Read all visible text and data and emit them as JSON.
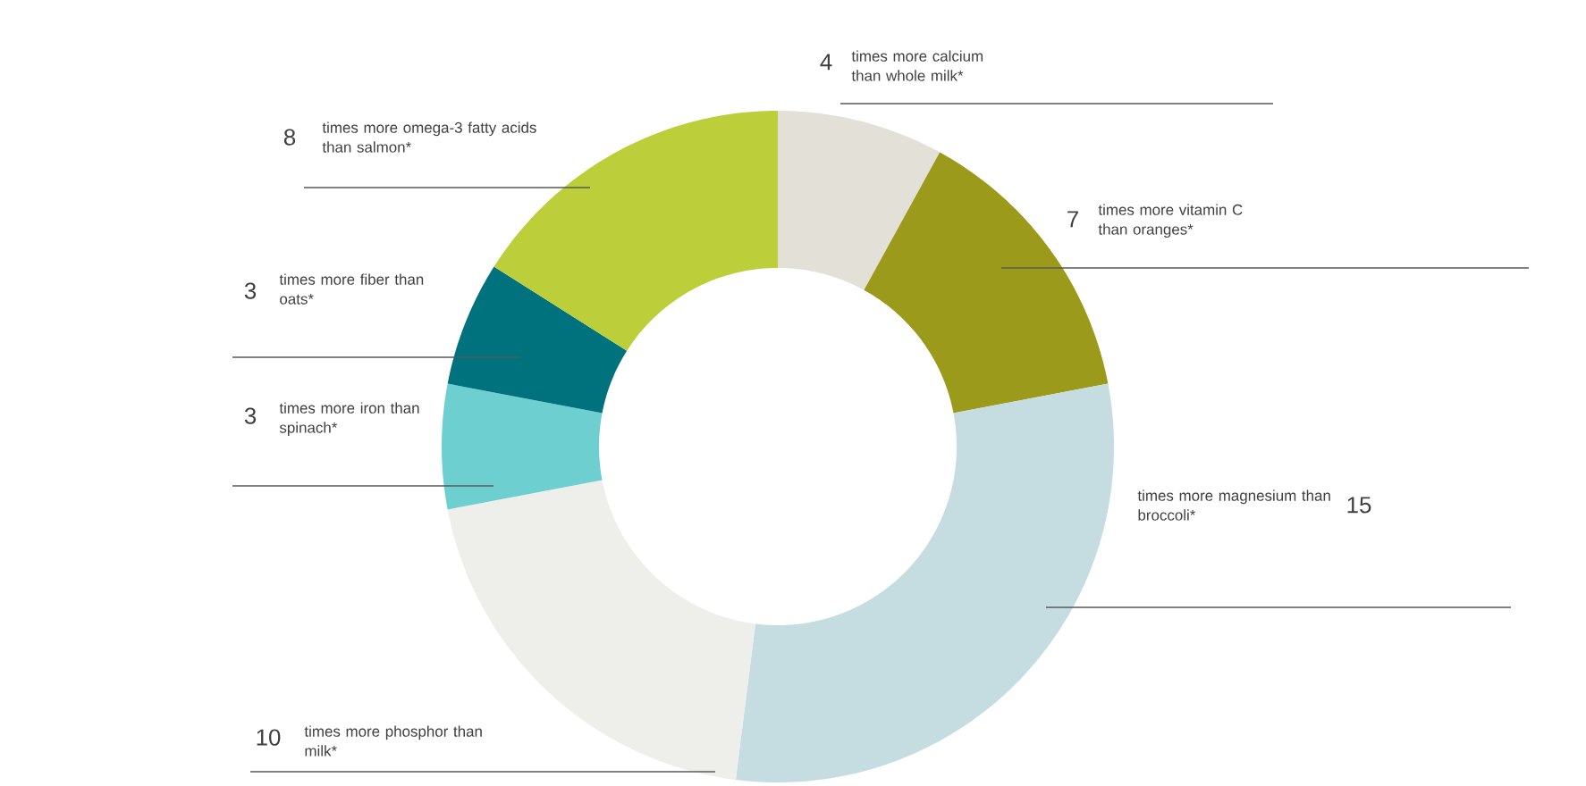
{
  "chart_data": {
    "type": "donut",
    "categories": [
      "times more calcium than whole milk*",
      "times more vitamin C than oranges*",
      "times more magnesium than broccoli*",
      "times more phosphor than milk*",
      "times more iron than spinach*",
      "times more fiber than oats*",
      "times more omega-3 fatty acids than salmon*"
    ],
    "values": [
      4,
      7,
      15,
      10,
      3,
      3,
      8
    ],
    "colors": [
      "#e3e0d8",
      "#9b9a1a",
      "#c5dde0",
      "#eeeeea",
      "#6ecfd0",
      "#00727e",
      "#bccf3a"
    ],
    "data_labels": true
  }
}
